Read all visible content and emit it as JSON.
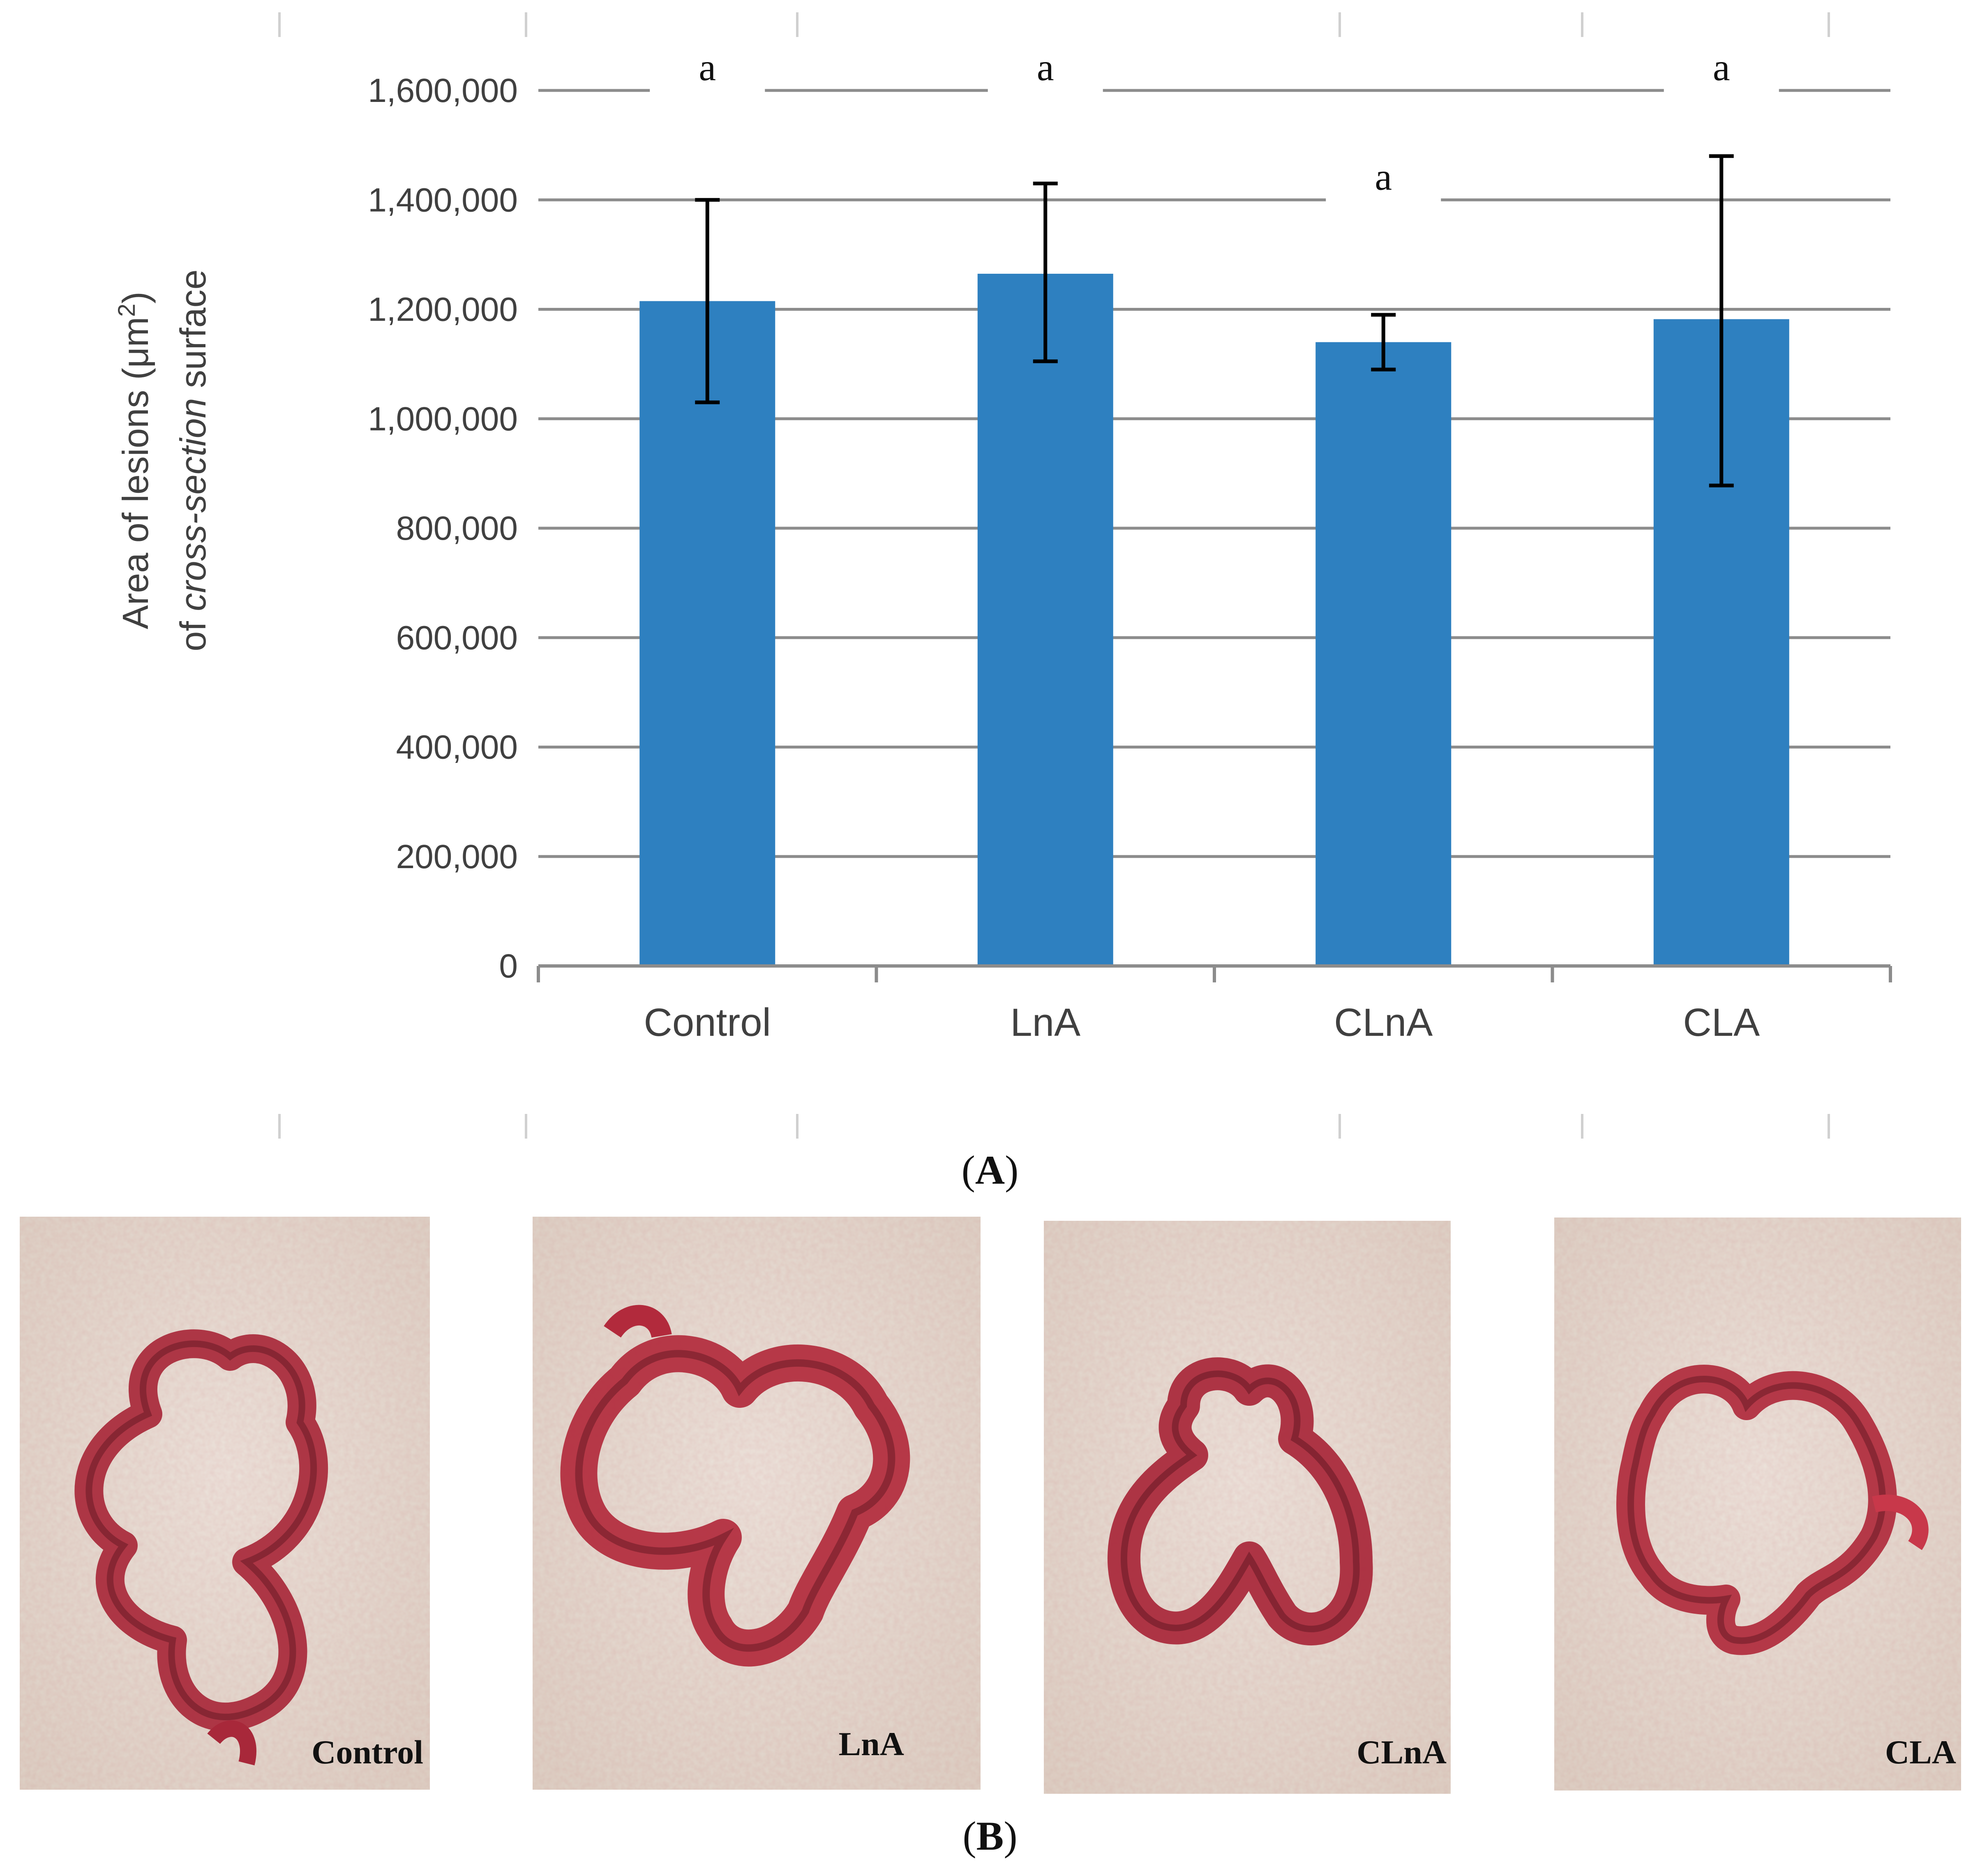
{
  "chart_data": {
    "type": "bar",
    "categories": [
      "Control",
      "LnA",
      "CLnA",
      "CLA"
    ],
    "values": [
      1215000,
      1265000,
      1140000,
      1182000
    ],
    "errors_upper": [
      1400000,
      1430000,
      1190000,
      1480000
    ],
    "errors_lower": [
      1030000,
      1105000,
      1090000,
      878000
    ],
    "significance_letters": [
      "a",
      "a",
      "a",
      "a"
    ],
    "ylabel_line1_pre": "Area of lesions (μm",
    "ylabel_line1_sup": "2",
    "ylabel_line1_post": ")",
    "ylabel_line2_pre": "of ",
    "ylabel_line2_italic": "cross-section",
    "ylabel_line2_post": " surface",
    "ylim": [
      0,
      1600000
    ],
    "yticks": [
      0,
      200000,
      400000,
      600000,
      800000,
      1000000,
      1200000,
      1400000,
      1600000
    ],
    "ytick_labels": [
      "0",
      "200,000",
      "400,000",
      "600,000",
      "800,000",
      "1,000,000",
      "1,200,000",
      "1,400,000",
      "1,600,000"
    ],
    "grid": true,
    "bar_color": "#2e80c0"
  },
  "panels": {
    "a_open": "(",
    "a_letter": "A",
    "a_close": ")",
    "b_open": "(",
    "b_letter": "B",
    "b_close": ")"
  },
  "photos": [
    {
      "caption": "Control"
    },
    {
      "caption": "LnA"
    },
    {
      "caption": "CLnA"
    },
    {
      "caption": "CLA"
    }
  ]
}
